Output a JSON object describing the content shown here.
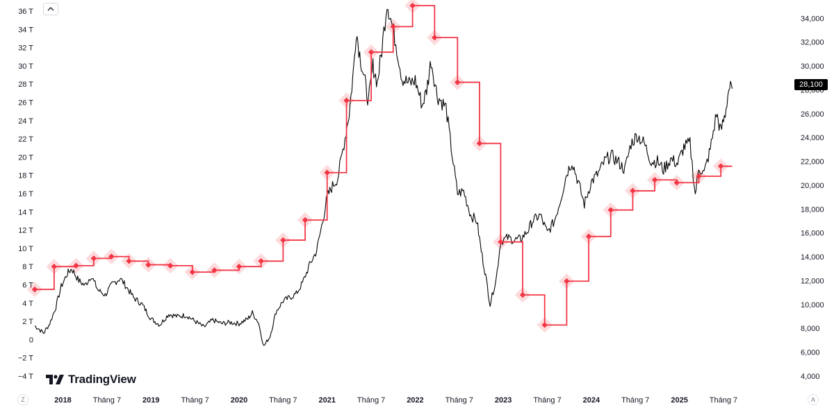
{
  "ui": {
    "logo_text": "TradingView",
    "left_corner_label": "Z",
    "right_corner_label": "A",
    "last_price_label": "28,100"
  },
  "chart_data": {
    "type": "line",
    "left_axis": {
      "ylim": [
        -4,
        36
      ],
      "ticks": [
        "36 T",
        "34 T",
        "32 T",
        "30 T",
        "28 T",
        "26 T",
        "24 T",
        "22 T",
        "20 T",
        "18 T",
        "16 T",
        "14 T",
        "12 T",
        "10 T",
        "8 T",
        "6 T",
        "4 T",
        "2 T",
        "0",
        "−2 T",
        "−4 T"
      ]
    },
    "right_axis": {
      "ylim": [
        4000,
        34600
      ],
      "ticks": [
        "34,000",
        "32,000",
        "30,000",
        "28,000",
        "26,000",
        "24,000",
        "22,000",
        "20,000",
        "18,000",
        "16,000",
        "14,000",
        "12,000",
        "10,000",
        "8,000",
        "6,000",
        "4,000"
      ]
    },
    "xlim": [
      2017.68,
      2025.95
    ],
    "x_ticks": [
      {
        "x": 2018.0,
        "label": "2018",
        "bold": true
      },
      {
        "x": 2018.5,
        "label": "Tháng 7",
        "bold": false
      },
      {
        "x": 2019.0,
        "label": "2019",
        "bold": true
      },
      {
        "x": 2019.5,
        "label": "Tháng 7",
        "bold": false
      },
      {
        "x": 2020.0,
        "label": "2020",
        "bold": true
      },
      {
        "x": 2020.5,
        "label": "Tháng 7",
        "bold": false
      },
      {
        "x": 2021.0,
        "label": "2021",
        "bold": true
      },
      {
        "x": 2021.5,
        "label": "Tháng 7",
        "bold": false
      },
      {
        "x": 2022.0,
        "label": "2022",
        "bold": true
      },
      {
        "x": 2022.5,
        "label": "Tháng 7",
        "bold": false
      },
      {
        "x": 2023.0,
        "label": "2023",
        "bold": true
      },
      {
        "x": 2023.5,
        "label": "Tháng 7",
        "bold": false
      },
      {
        "x": 2024.0,
        "label": "2024",
        "bold": true
      },
      {
        "x": 2024.5,
        "label": "Tháng 7",
        "bold": false
      },
      {
        "x": 2025.0,
        "label": "2025",
        "bold": true
      },
      {
        "x": 2025.5,
        "label": "Tháng 7",
        "bold": false
      }
    ],
    "series": [
      {
        "axis": "right",
        "style": "price",
        "color": "#000000",
        "last_value": 28100,
        "x": [
          2017.68,
          2017.72,
          2017.78,
          2017.85,
          2017.92,
          2017.98,
          2018.05,
          2018.1,
          2018.18,
          2018.25,
          2018.32,
          2018.4,
          2018.48,
          2018.56,
          2018.65,
          2018.72,
          2018.8,
          2018.9,
          2019.0,
          2019.1,
          2019.2,
          2019.3,
          2019.4,
          2019.5,
          2019.6,
          2019.7,
          2019.8,
          2019.9,
          2020.0,
          2020.1,
          2020.15,
          2020.22,
          2020.28,
          2020.35,
          2020.42,
          2020.5,
          2020.58,
          2020.65,
          2020.72,
          2020.8,
          2020.88,
          2020.95,
          2021.0,
          2021.05,
          2021.12,
          2021.18,
          2021.25,
          2021.3,
          2021.33,
          2021.37,
          2021.42,
          2021.47,
          2021.52,
          2021.57,
          2021.62,
          2021.68,
          2021.72,
          2021.78,
          2021.85,
          2021.93,
          2022.0,
          2022.08,
          2022.13,
          2022.18,
          2022.25,
          2022.35,
          2022.42,
          2022.48,
          2022.55,
          2022.63,
          2022.7,
          2022.75,
          2022.8,
          2022.85,
          2022.92,
          2022.97,
          2023.05,
          2023.12,
          2023.2,
          2023.28,
          2023.33,
          2023.42,
          2023.5,
          2023.58,
          2023.65,
          2023.72,
          2023.78,
          2023.85,
          2023.92,
          2024.0,
          2024.08,
          2024.15,
          2024.22,
          2024.3,
          2024.38,
          2024.45,
          2024.52,
          2024.6,
          2024.68,
          2024.75,
          2024.82,
          2024.9,
          2024.98,
          2025.05,
          2025.12,
          2025.18,
          2025.22,
          2025.28,
          2025.35,
          2025.42,
          2025.47,
          2025.52,
          2025.56,
          2025.6
        ],
        "y": [
          8200,
          8000,
          7600,
          8400,
          9800,
          11500,
          12600,
          13000,
          12000,
          11600,
          12400,
          11200,
          10800,
          11700,
          12200,
          11500,
          10600,
          10000,
          8800,
          8300,
          9200,
          9000,
          9100,
          8600,
          8100,
          8700,
          8400,
          8500,
          8400,
          8800,
          9300,
          8500,
          6500,
          7300,
          9400,
          10300,
          10600,
          10900,
          11800,
          13300,
          14500,
          17000,
          19000,
          19800,
          20600,
          23000,
          26000,
          29700,
          33000,
          31000,
          29000,
          27000,
          30000,
          28600,
          31300,
          35400,
          34000,
          32000,
          29000,
          28500,
          28800,
          26700,
          28000,
          30500,
          27500,
          26500,
          22500,
          19300,
          19500,
          17500,
          17000,
          14500,
          12400,
          10000,
          12200,
          15300,
          15600,
          15400,
          15500,
          16200,
          17000,
          17500,
          16000,
          17000,
          18800,
          21000,
          22000,
          20300,
          18400,
          20300,
          21000,
          22000,
          22500,
          22000,
          21300,
          23500,
          24200,
          23500,
          22000,
          22000,
          21300,
          22200,
          21800,
          23200,
          23500,
          19200,
          21500,
          21000,
          23000,
          26000,
          24500,
          26000,
          28100,
          28100
        ]
      },
      {
        "axis": "left",
        "style": "step",
        "color": "#f23645",
        "x": [
          2017.68,
          2017.9,
          2018.15,
          2018.35,
          2018.55,
          2018.75,
          2018.97,
          2019.22,
          2019.47,
          2019.72,
          2020.0,
          2020.25,
          2020.5,
          2020.75,
          2021.0,
          2021.22,
          2021.5,
          2021.75,
          2021.97,
          2022.22,
          2022.48,
          2022.73,
          2022.97,
          2023.22,
          2023.47,
          2023.72,
          2023.97,
          2024.22,
          2024.47,
          2024.72,
          2024.97,
          2025.22,
          2025.47,
          2025.6
        ],
        "y": [
          5.5,
          8.0,
          8.1,
          8.9,
          9.1,
          8.6,
          8.2,
          8.1,
          7.4,
          7.6,
          8.0,
          8.6,
          10.9,
          13.1,
          18.3,
          26.2,
          31.5,
          34.3,
          36.6,
          33.1,
          28.2,
          21.5,
          10.7,
          4.9,
          1.6,
          6.4,
          11.3,
          14.2,
          16.3,
          17.5,
          17.2,
          17.9,
          19.0,
          19.0
        ]
      }
    ]
  }
}
